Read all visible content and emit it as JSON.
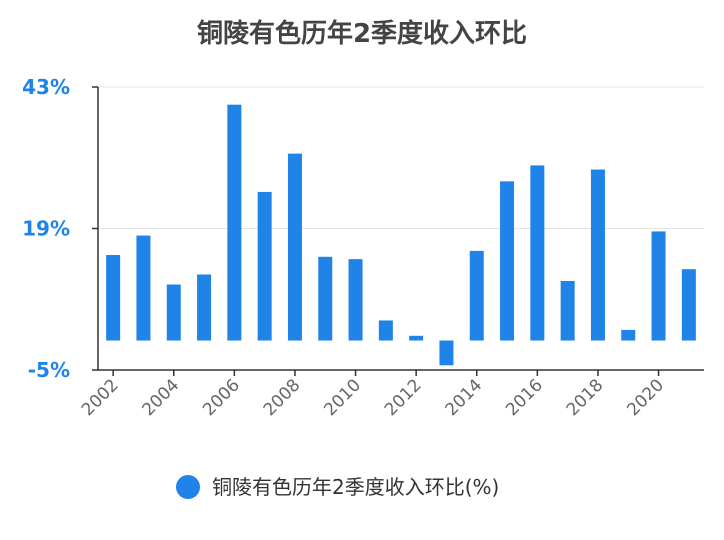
{
  "chart_data": {
    "type": "bar",
    "title": "铜陵有色历年2季度收入环比",
    "categories": [
      "2002",
      "2003",
      "2004",
      "2005",
      "2006",
      "2007",
      "2008",
      "2009",
      "2010",
      "2011",
      "2012",
      "2013",
      "2014",
      "2015",
      "2016",
      "2017",
      "2018",
      "2019",
      "2020",
      "2021"
    ],
    "x_tick_labels": [
      "2002",
      "2004",
      "2006",
      "2008",
      "2010",
      "2012",
      "2014",
      "2016",
      "2018",
      "2020"
    ],
    "series": [
      {
        "name": "铜陵有色历年2季度收入环比(%)",
        "color": "#1f83e8",
        "values": [
          14.5,
          17.8,
          9.5,
          11.2,
          40.0,
          25.2,
          31.7,
          14.2,
          13.8,
          3.4,
          0.8,
          -4.2,
          15.2,
          27.0,
          29.7,
          10.1,
          29.0,
          1.8,
          18.5,
          12.1
        ]
      }
    ],
    "y_tick_labels": [
      "43%",
      "19%",
      "-5%"
    ],
    "y_tick_values": [
      43,
      19,
      -5
    ],
    "ylim": [
      -5,
      43
    ],
    "xlabel": "",
    "ylabel": "",
    "grid": true,
    "legend_position": "bottom",
    "axis_label_color": "#1f83e8"
  }
}
